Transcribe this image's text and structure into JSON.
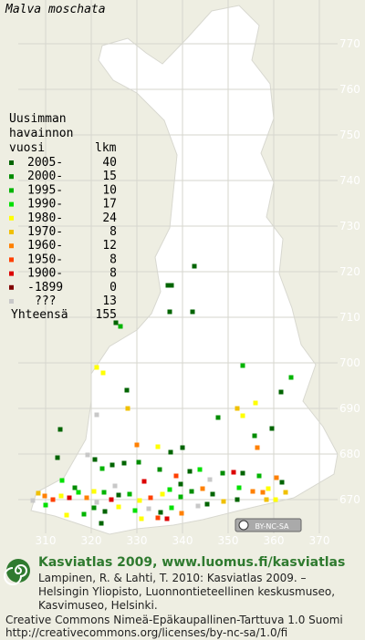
{
  "title": "Malva moschata",
  "legend": {
    "header": [
      "Uusimman",
      "havainnon",
      "vuosi",
      "lkm"
    ],
    "rows": [
      {
        "label": "2005-",
        "count": 40,
        "color": "#006400"
      },
      {
        "label": "2000-",
        "count": 15,
        "color": "#008c00"
      },
      {
        "label": "1995-",
        "count": 10,
        "color": "#00b400"
      },
      {
        "label": "1990-",
        "count": 17,
        "color": "#00e000"
      },
      {
        "label": "1980-",
        "count": 24,
        "color": "#ffff00"
      },
      {
        "label": "1970-",
        "count": 8,
        "color": "#f0c000"
      },
      {
        "label": "1960-",
        "count": 12,
        "color": "#ff8000"
      },
      {
        "label": "1950-",
        "count": 8,
        "color": "#ff4000"
      },
      {
        "label": "1900-",
        "count": 8,
        "color": "#dc0000"
      },
      {
        "label": "-1899",
        "count": 0,
        "color": "#800000"
      },
      {
        "label": "???",
        "count": 13,
        "color": "#c8c8c8"
      }
    ],
    "total": {
      "label": "Yhteensä",
      "count": 155
    }
  },
  "northing_ticks": [
    770,
    760,
    750,
    740,
    730,
    720,
    710,
    700,
    690,
    680,
    670
  ],
  "easting_ticks": [
    310,
    320,
    330,
    340,
    350,
    360,
    370
  ],
  "points": [
    [
      342.6,
      721.2,
      0
    ],
    [
      337.6,
      717.0,
      0
    ],
    [
      336.8,
      717.0,
      0
    ],
    [
      342.2,
      711.2,
      0
    ],
    [
      337.2,
      711.2,
      0
    ],
    [
      325.4,
      708.8,
      0
    ],
    [
      326.4,
      708.0,
      2
    ],
    [
      353.2,
      699.4,
      2
    ],
    [
      363.8,
      696.8,
      2
    ],
    [
      361.6,
      693.6,
      0
    ],
    [
      327.8,
      694.0,
      0
    ],
    [
      321.2,
      699.0,
      4
    ],
    [
      322.6,
      697.8,
      4
    ],
    [
      321.2,
      688.6,
      10
    ],
    [
      328.0,
      690.0,
      5
    ],
    [
      352.0,
      690.0,
      5
    ],
    [
      353.2,
      688.4,
      4
    ],
    [
      347.8,
      688.0,
      1
    ],
    [
      356.0,
      691.2,
      4
    ],
    [
      359.6,
      685.6,
      0
    ],
    [
      355.8,
      684.0,
      1
    ],
    [
      356.4,
      681.4,
      6
    ],
    [
      330.0,
      682.0,
      6
    ],
    [
      334.6,
      681.6,
      4
    ],
    [
      337.4,
      680.4,
      0
    ],
    [
      340.0,
      681.4,
      0
    ],
    [
      312.6,
      679.2,
      0
    ],
    [
      313.2,
      685.4,
      0
    ],
    [
      319.2,
      679.8,
      10
    ],
    [
      320.8,
      678.8,
      0
    ],
    [
      322.4,
      676.8,
      2
    ],
    [
      324.6,
      677.6,
      0
    ],
    [
      327.2,
      678.0,
      0
    ],
    [
      330.4,
      678.2,
      1
    ],
    [
      335.0,
      676.6,
      1
    ],
    [
      338.6,
      675.2,
      7
    ],
    [
      341.6,
      676.2,
      0
    ],
    [
      343.8,
      676.6,
      3
    ],
    [
      346.0,
      674.4,
      10
    ],
    [
      348.8,
      675.8,
      1
    ],
    [
      351.2,
      676.0,
      8
    ],
    [
      353.2,
      675.8,
      0
    ],
    [
      356.8,
      675.2,
      2
    ],
    [
      360.6,
      674.8,
      6
    ],
    [
      361.8,
      673.8,
      0
    ],
    [
      358.8,
      672.4,
      4
    ],
    [
      357.6,
      671.6,
      6
    ],
    [
      355.4,
      671.8,
      6
    ],
    [
      352.4,
      672.6,
      3
    ],
    [
      346.6,
      671.2,
      0
    ],
    [
      342.0,
      671.8,
      1
    ],
    [
      339.6,
      670.6,
      2
    ],
    [
      337.2,
      672.2,
      3
    ],
    [
      335.6,
      671.2,
      4
    ],
    [
      333.0,
      670.4,
      7
    ],
    [
      330.6,
      669.8,
      4
    ],
    [
      328.4,
      671.2,
      2
    ],
    [
      326.0,
      671.0,
      0
    ],
    [
      324.4,
      670.0,
      8
    ],
    [
      322.8,
      671.6,
      2
    ],
    [
      320.6,
      671.8,
      4
    ],
    [
      319.0,
      670.4,
      6
    ],
    [
      317.2,
      671.6,
      3
    ],
    [
      315.2,
      670.4,
      8
    ],
    [
      313.4,
      670.8,
      4
    ],
    [
      311.6,
      670.0,
      7
    ],
    [
      309.8,
      670.8,
      6
    ],
    [
      308.4,
      671.4,
      5
    ],
    [
      307.2,
      669.8,
      10
    ],
    [
      320.6,
      668.2,
      1
    ],
    [
      323.0,
      667.4,
      0
    ],
    [
      326.0,
      668.4,
      4
    ],
    [
      329.6,
      667.6,
      3
    ],
    [
      332.6,
      668.0,
      10
    ],
    [
      335.2,
      667.2,
      0
    ],
    [
      337.6,
      668.2,
      3
    ],
    [
      339.8,
      667.0,
      6
    ],
    [
      343.4,
      668.6,
      10
    ],
    [
      345.4,
      669.0,
      0
    ],
    [
      318.4,
      666.8,
      2
    ],
    [
      331.0,
      665.8,
      4
    ],
    [
      334.6,
      666.0,
      7
    ],
    [
      336.6,
      665.8,
      8
    ],
    [
      322.2,
      664.8,
      0
    ],
    [
      314.6,
      666.6,
      4
    ],
    [
      321.2,
      669.4,
      10
    ],
    [
      325.2,
      673.0,
      10
    ],
    [
      331.6,
      674.0,
      8
    ],
    [
      344.4,
      672.4,
      6
    ],
    [
      349.0,
      669.6,
      5
    ],
    [
      352.0,
      670.0,
      0
    ],
    [
      339.6,
      673.4,
      0
    ],
    [
      313.6,
      674.2,
      3
    ],
    [
      316.4,
      672.6,
      1
    ],
    [
      310.0,
      668.8,
      3
    ],
    [
      362.6,
      671.6,
      5
    ],
    [
      360.4,
      670.0,
      4
    ],
    [
      358.4,
      670.0,
      5
    ]
  ],
  "license_badge": "BY-NC-SA",
  "footer": {
    "heading": "Kasviatlas 2009, www.luomus.fi/kasviatlas",
    "citation": [
      "Lampinen, R. & Lahti, T. 2010: Kasviatlas 2009. –",
      "Helsingin Yliopisto, Luonnontieteellinen keskusmuseo,",
      "Kasvimuseo, Helsinki."
    ],
    "license": [
      "Creative Commons Nimeä-Epäkaupallinen-Tarttuva 1.0 Suomi",
      "http://creativecommons.org/licenses/by-nc-sa/1.0/fi"
    ]
  }
}
